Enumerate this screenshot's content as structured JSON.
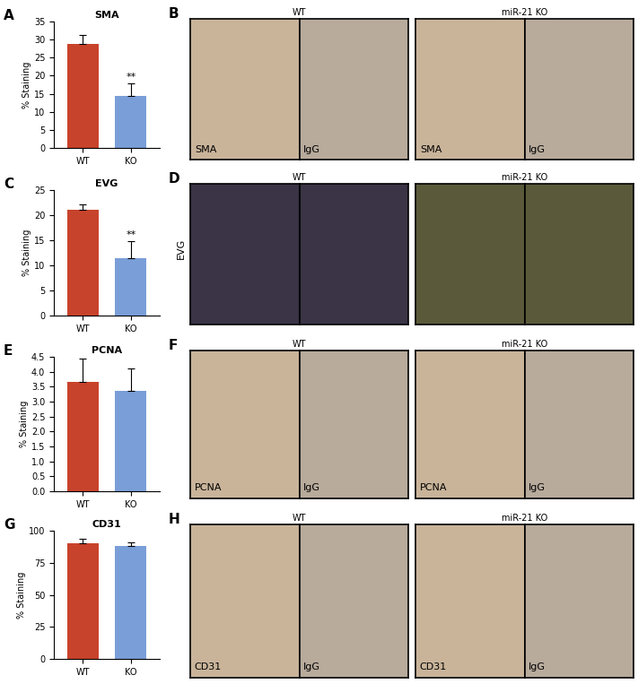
{
  "chart_data": [
    {
      "type": "bar",
      "panel": "A",
      "title": "SMA",
      "ylabel": "% Staining",
      "categories": [
        "WT",
        "KO"
      ],
      "values": [
        28.7,
        14.3
      ],
      "errors": [
        2.5,
        3.6
      ],
      "colors": [
        "#c8432b",
        "#7a9ed8"
      ],
      "ylim": [
        0,
        35
      ],
      "yticks": [
        0,
        5,
        10,
        15,
        20,
        25,
        30,
        35
      ],
      "annotations": [
        {
          "category": "KO",
          "text": "**"
        }
      ]
    },
    {
      "type": "bar",
      "panel": "C",
      "title": "EVG",
      "ylabel": "% Staining",
      "categories": [
        "WT",
        "KO"
      ],
      "values": [
        21.0,
        11.4
      ],
      "errors": [
        1.2,
        3.5
      ],
      "colors": [
        "#c8432b",
        "#7a9ed8"
      ],
      "ylim": [
        0,
        25
      ],
      "yticks": [
        0,
        5,
        10,
        15,
        20,
        25
      ],
      "annotations": [
        {
          "category": "KO",
          "text": "**"
        }
      ]
    },
    {
      "type": "bar",
      "panel": "E",
      "title": "PCNA",
      "ylabel": "% Staining",
      "categories": [
        "WT",
        "KO"
      ],
      "values": [
        3.65,
        3.35
      ],
      "errors": [
        0.8,
        0.75
      ],
      "colors": [
        "#c8432b",
        "#7a9ed8"
      ],
      "ylim": [
        0,
        4.5
      ],
      "yticks": [
        {
          "value": 0,
          "label": "0.0"
        },
        {
          "value": 0.5,
          "label": "0.5"
        },
        {
          "value": 1,
          "label": "1.0"
        },
        {
          "value": 1.5,
          "label": "1.5"
        },
        {
          "value": 2,
          "label": "2.0"
        },
        {
          "value": 2.5,
          "label": "2.5"
        },
        {
          "value": 3,
          "label": "3.0"
        },
        {
          "value": 3.5,
          "label": "3.5"
        },
        {
          "value": 4,
          "label": "4.0"
        },
        {
          "value": 4.5,
          "label": "4.5"
        }
      ]
    },
    {
      "type": "bar",
      "panel": "G",
      "title": "CD31",
      "ylabel": "% Staining",
      "categories": [
        "WT",
        "KO"
      ],
      "values": [
        90,
        88
      ],
      "errors": [
        4,
        3
      ],
      "colors": [
        "#c8432b",
        "#7a9ed8"
      ],
      "ylim": [
        0,
        100
      ],
      "yticks": [
        0,
        25,
        50,
        75,
        100
      ]
    }
  ],
  "image_panels": [
    {
      "panel": "B",
      "groups": [
        {
          "title": "WT",
          "images": [
            "SMA",
            "IgG"
          ]
        },
        {
          "title": "miR-21 KO",
          "images": [
            "SMA",
            "IgG"
          ]
        }
      ]
    },
    {
      "panel": "D",
      "side_label": "EVG",
      "groups": [
        {
          "title": "WT"
        },
        {
          "title": "miR-21 KO"
        }
      ]
    },
    {
      "panel": "F",
      "groups": [
        {
          "title": "WT",
          "images": [
            "PCNA",
            "IgG"
          ]
        },
        {
          "title": "miR-21 KO",
          "images": [
            "PCNA",
            "IgG"
          ]
        }
      ]
    },
    {
      "panel": "H",
      "groups": [
        {
          "title": "WT",
          "images": [
            "CD31",
            "IgG"
          ]
        },
        {
          "title": "miR-21 KO",
          "images": [
            "CD31",
            "IgG"
          ]
        }
      ]
    }
  ]
}
